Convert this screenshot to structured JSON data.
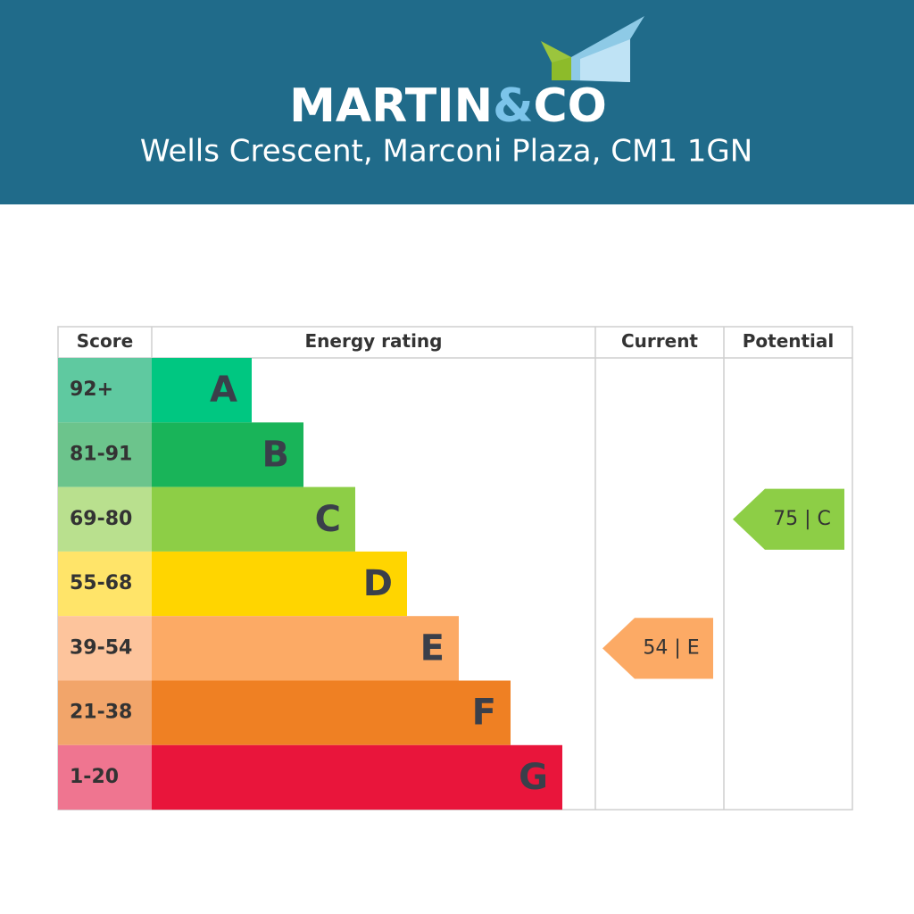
{
  "header": {
    "brand": "MARTIN",
    "brand_amp": "&",
    "brand_end": "CO",
    "address": "Wells Crescent, Marconi Plaza, CM1 1GN"
  },
  "table": {
    "columns": [
      "Score",
      "Energy rating",
      "Current",
      "Potential"
    ],
    "rows": [
      {
        "score": "92+",
        "letter": "A",
        "color": "#00c781",
        "light": "#5fc9a0"
      },
      {
        "score": "81-91",
        "letter": "B",
        "color": "#19b459",
        "light": "#6cc48c"
      },
      {
        "score": "69-80",
        "letter": "C",
        "color": "#8dce46",
        "light": "#b9e08e",
        "potential": "75 | C"
      },
      {
        "score": "55-68",
        "letter": "D",
        "color": "#ffd500",
        "light": "#ffe469"
      },
      {
        "score": "39-54",
        "letter": "E",
        "color": "#fcaa65",
        "light": "#fdc49c",
        "current": "54 | E"
      },
      {
        "score": "21-38",
        "letter": "F",
        "color": "#ef8023",
        "light": "#f2a56a"
      },
      {
        "score": "1-20",
        "letter": "G",
        "color": "#e9153b",
        "light": "#ef7590"
      }
    ]
  }
}
